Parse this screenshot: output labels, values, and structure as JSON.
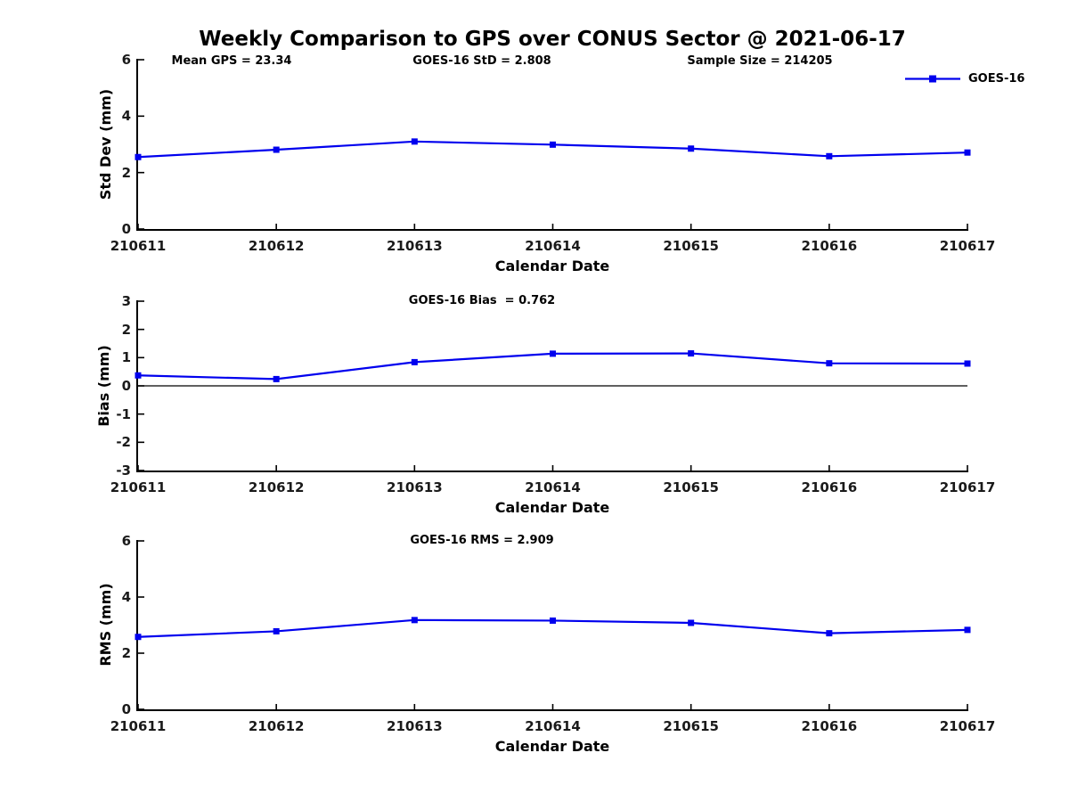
{
  "figure": {
    "title": "Weekly Comparison to GPS over CONUS Sector @ 2021-06-17",
    "legend": {
      "label": "GOES-16"
    },
    "colors": {
      "series": "#0000EE",
      "axis": "#000000",
      "text": "#000000",
      "background": "#FFFFFF"
    }
  },
  "chart_data": [
    {
      "type": "line",
      "name": "std-dev",
      "title": "",
      "ylabel": "Std Dev (mm)",
      "xlabel": "Calendar Date",
      "ylim": [
        0,
        6
      ],
      "yticks": [
        0,
        2,
        4,
        6
      ],
      "grid": false,
      "legend_position": "top-right",
      "categories": [
        "210611",
        "210612",
        "210613",
        "210614",
        "210615",
        "210616",
        "210617"
      ],
      "series": [
        {
          "name": "GOES-16",
          "values": [
            2.55,
            2.81,
            3.1,
            2.99,
            2.85,
            2.58,
            2.71
          ]
        }
      ],
      "annotations": [
        "Mean GPS = 23.34",
        "GOES-16 StD = 2.808",
        "Sample Size = 214205"
      ]
    },
    {
      "type": "line",
      "name": "bias",
      "title": "",
      "ylabel": "Bias (mm)",
      "xlabel": "Calendar Date",
      "ylim": [
        -3,
        3
      ],
      "yticks": [
        -3,
        -2,
        -1,
        0,
        1,
        2,
        3
      ],
      "zero_line": true,
      "grid": false,
      "categories": [
        "210611",
        "210612",
        "210613",
        "210614",
        "210615",
        "210616",
        "210617"
      ],
      "series": [
        {
          "name": "GOES-16",
          "values": [
            0.37,
            0.24,
            0.84,
            1.14,
            1.15,
            0.8,
            0.79
          ]
        }
      ],
      "annotations": [
        "GOES-16 Bias  = 0.762"
      ]
    },
    {
      "type": "line",
      "name": "rms",
      "title": "",
      "ylabel": "RMS (mm)",
      "xlabel": "Calendar Date",
      "ylim": [
        0,
        6
      ],
      "yticks": [
        0,
        2,
        4,
        6
      ],
      "grid": false,
      "categories": [
        "210611",
        "210612",
        "210613",
        "210614",
        "210615",
        "210616",
        "210617"
      ],
      "series": [
        {
          "name": "GOES-16",
          "values": [
            2.58,
            2.78,
            3.18,
            3.16,
            3.08,
            2.71,
            2.83
          ]
        }
      ],
      "annotations": [
        "GOES-16 RMS = 2.909"
      ]
    }
  ]
}
